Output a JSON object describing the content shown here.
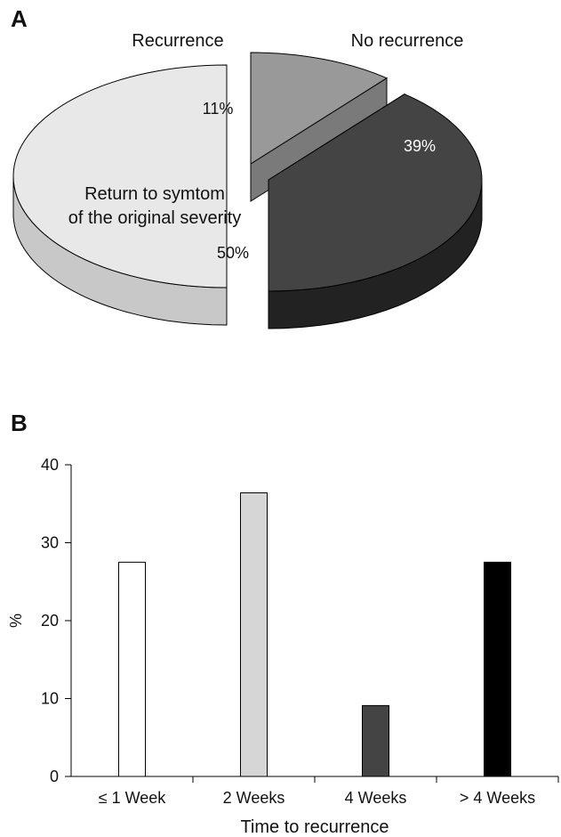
{
  "panels": {
    "a": "A",
    "b": "B"
  },
  "chart_data": [
    {
      "type": "pie",
      "style": "3d-exploded",
      "slices": [
        {
          "label": "Recurrence",
          "value": 11,
          "value_label": "11%",
          "color": "#999999",
          "side_color": "#7a7a7a"
        },
        {
          "label": "No recurrence",
          "value": 39,
          "value_label": "39%",
          "color": "#444444",
          "side_color": "#222222"
        },
        {
          "label": "Return to symtom of the original severity",
          "label_lines": [
            "Return to symtom",
            "of the original severity"
          ],
          "value": 50,
          "value_label": "50%",
          "color": "#e8e8e8",
          "side_color": "#c8c8c8"
        }
      ]
    },
    {
      "type": "bar",
      "categories": [
        "≤ 1 Week",
        "2 Weeks",
        "4 Weeks",
        "> 4 Weeks"
      ],
      "values": [
        27.5,
        36.4,
        9.1,
        27.5
      ],
      "colors": [
        "#ffffff",
        "#d6d6d6",
        "#444444",
        "#000000"
      ],
      "xlabel": "Time to recurrence",
      "ylabel": "%",
      "ylim": [
        0,
        40
      ],
      "yticks": [
        "0",
        "10",
        "20",
        "30",
        "40"
      ],
      "grid": false
    }
  ]
}
